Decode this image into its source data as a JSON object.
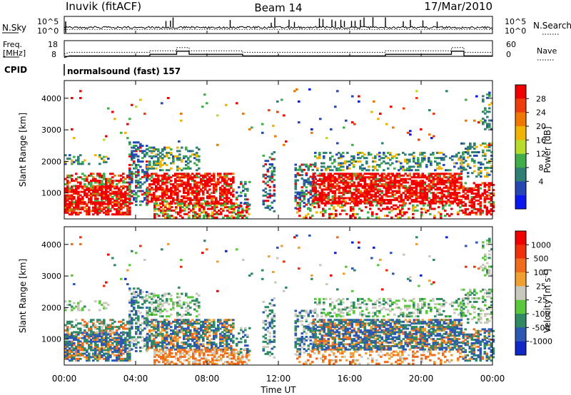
{
  "header": {
    "station": "Inuvik (fitACF)",
    "beam": "Beam 14",
    "date": "17/Mar/2010"
  },
  "chart_data": [
    {
      "type": "line",
      "name": "noise-panel",
      "left_label": "N.Sky",
      "right_label": "N.Search",
      "left_ticks": [
        "10^5",
        "10^0"
      ],
      "right_ticks": [
        "10^5",
        "10^0"
      ],
      "spike_times_h": [
        5.7,
        5.95,
        6.1,
        9.3,
        11.6,
        11.8,
        12.6,
        12.9,
        14.3,
        14.5,
        15.0,
        15.2,
        15.5,
        15.7,
        16.1,
        16.3,
        16.6,
        16.8,
        17.3,
        18.0,
        19.0,
        19.4,
        20.1,
        20.9
      ]
    },
    {
      "type": "line",
      "name": "freq-panel",
      "left_label_line1": "Freq.",
      "left_label_line2": "[MHz]",
      "right_label": "Nave",
      "left_ticks": [
        "18",
        "8"
      ],
      "right_ticks": [
        "60",
        "0"
      ],
      "cpid_label": "CPID",
      "cpid_text": "normalsound (fast) 157",
      "freq_steps": [
        [
          0,
          10
        ],
        [
          0.3,
          11
        ],
        [
          4.8,
          11
        ],
        [
          4.8,
          12
        ],
        [
          6.3,
          12
        ],
        [
          6.3,
          14
        ],
        [
          7.0,
          14
        ],
        [
          7.0,
          12
        ],
        [
          10.0,
          12
        ],
        [
          10.0,
          11
        ],
        [
          18.0,
          11
        ],
        [
          18.0,
          12
        ],
        [
          21.7,
          12
        ],
        [
          21.7,
          14
        ],
        [
          22.4,
          14
        ],
        [
          22.4,
          11
        ],
        [
          24,
          11
        ]
      ]
    },
    {
      "type": "heatmap",
      "name": "power-panel",
      "ylabel": "Slant Range [km]",
      "ylim": [
        180,
        4560
      ],
      "yticks": [
        1000,
        2000,
        3000,
        4000
      ],
      "colorbar_label": "Power [dB]",
      "colorbar_ticks": [
        "28",
        "24",
        "20",
        "16",
        "12",
        "8",
        "4"
      ],
      "colorbar_colors": [
        "#0b17f0",
        "#2447b4",
        "#2f7f74",
        "#3fae48",
        "#b8dc2a",
        "#f0b400",
        "#f07800",
        "#f03c0a",
        "#f00000"
      ]
    },
    {
      "type": "heatmap",
      "name": "velocity-panel",
      "ylabel": "Slant Range [km]",
      "ylim": [
        180,
        4560
      ],
      "yticks": [
        1000,
        2000,
        3000,
        4000
      ],
      "colorbar_label": "Velocity [m s",
      "colorbar_label_sup": "-1",
      "colorbar_label_end": "]",
      "colorbar_ticks": [
        "1000",
        "500",
        "100",
        "25",
        "-25",
        "-100",
        "-500",
        "-1000"
      ],
      "colorbar_colors": [
        "#1027c8",
        "#2c58b4",
        "#2f8a64",
        "#5ac83c",
        "#c8c8bc",
        "#f0a030",
        "#f06c1c",
        "#f0300a",
        "#f00000"
      ],
      "xlabel": "Time UT",
      "xticks": [
        "00:00",
        "04:00",
        "08:00",
        "12:00",
        "16:00",
        "20:00",
        "00:00"
      ],
      "xlim_h": [
        0,
        24
      ]
    }
  ]
}
